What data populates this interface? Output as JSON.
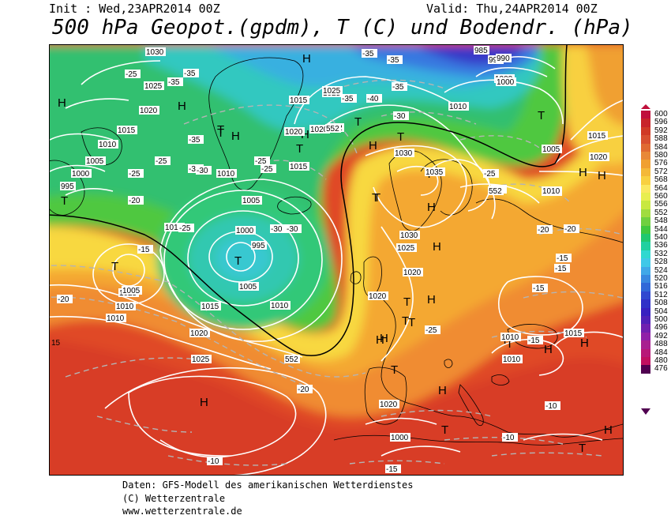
{
  "header": {
    "init": "Init : Wed,23APR2014 00Z",
    "valid": "Valid: Thu,24APR2014 00Z",
    "title": "500 hPa Geopot.(gpdm), T (C) und Bodendr. (hPa)"
  },
  "footer": {
    "line1": "Daten: GFS-Modell des amerikanischen Wetterdienstes",
    "line2": "(C) Wetterzentrale",
    "line3": "www.wetterzentrale.de"
  },
  "scale": {
    "labels": [
      "600",
      "596",
      "592",
      "588",
      "584",
      "580",
      "576",
      "572",
      "568",
      "564",
      "560",
      "556",
      "552",
      "548",
      "544",
      "540",
      "536",
      "532",
      "528",
      "524",
      "520",
      "516",
      "512",
      "508",
      "504",
      "500",
      "496",
      "492",
      "488",
      "484",
      "480",
      "476"
    ],
    "colors": [
      "#c0103c",
      "#c8242a",
      "#d03a26",
      "#d85030",
      "#e06a32",
      "#e88838",
      "#f0a030",
      "#f4b838",
      "#f8d040",
      "#fae860",
      "#e8ee50",
      "#c8e840",
      "#a0dc40",
      "#70d040",
      "#40c840",
      "#20c870",
      "#20d0a0",
      "#30d8d0",
      "#40c8e8",
      "#40a8e8",
      "#3888e0",
      "#3068d8",
      "#3048d0",
      "#3030c8",
      "#3820c0",
      "#5020b8",
      "#7020b0",
      "#9020a8",
      "#a82090",
      "#b81878",
      "#c01060",
      "#500050"
    ]
  },
  "map_labels": {
    "highs": [
      "H",
      "H",
      "H",
      "H",
      "H",
      "H",
      "H",
      "H",
      "H",
      "H",
      "H",
      "H",
      "H",
      "H",
      "H",
      "H",
      "H",
      "H"
    ],
    "lows": [
      "T",
      "T",
      "T",
      "T",
      "T",
      "T",
      "T",
      "T",
      "T",
      "T",
      "T",
      "T",
      "T",
      "T",
      "T",
      "T",
      "T",
      "T",
      "T",
      "T"
    ],
    "pressure": [
      "1030",
      "1025",
      "1020",
      "1015",
      "1010",
      "1005",
      "1000",
      "995",
      "1025",
      "1020",
      "1015",
      "1010",
      "1005",
      "1000",
      "995",
      "1005",
      "1010",
      "1015",
      "1020",
      "1025",
      "1030",
      "1035",
      "1030",
      "1025",
      "1020",
      "1020",
      "1020",
      "1015",
      "1010",
      "1010",
      "1015",
      "1010",
      "1005",
      "1000",
      "995",
      "990",
      "985",
      "1000",
      "1010",
      "1015",
      "1020",
      "1025",
      "1005",
      "1010",
      "1015",
      "1020",
      "1025",
      "1005",
      "1000",
      "1010"
    ],
    "temperature": [
      "-25",
      "-35",
      "-35",
      "-35",
      "-30",
      "-25",
      "-25",
      "-20",
      "-25",
      "-15",
      "-30",
      "-30",
      "-25",
      "-25",
      "-30",
      "-20",
      "-35",
      "-35",
      "-35",
      "-40",
      "-35",
      "-30",
      "-25",
      "-20",
      "-20",
      "-20",
      "-15",
      "-15",
      "-15",
      "-15",
      "-10",
      "-10",
      "-10",
      "-15",
      "-20",
      "-25"
    ],
    "geopot": [
      "552",
      "552",
      "552",
      "552"
    ],
    "edge15": "15"
  },
  "colors": {
    "frame": "#000000",
    "isobar": "#ffffff",
    "isotherm": "#b4b4b4"
  }
}
